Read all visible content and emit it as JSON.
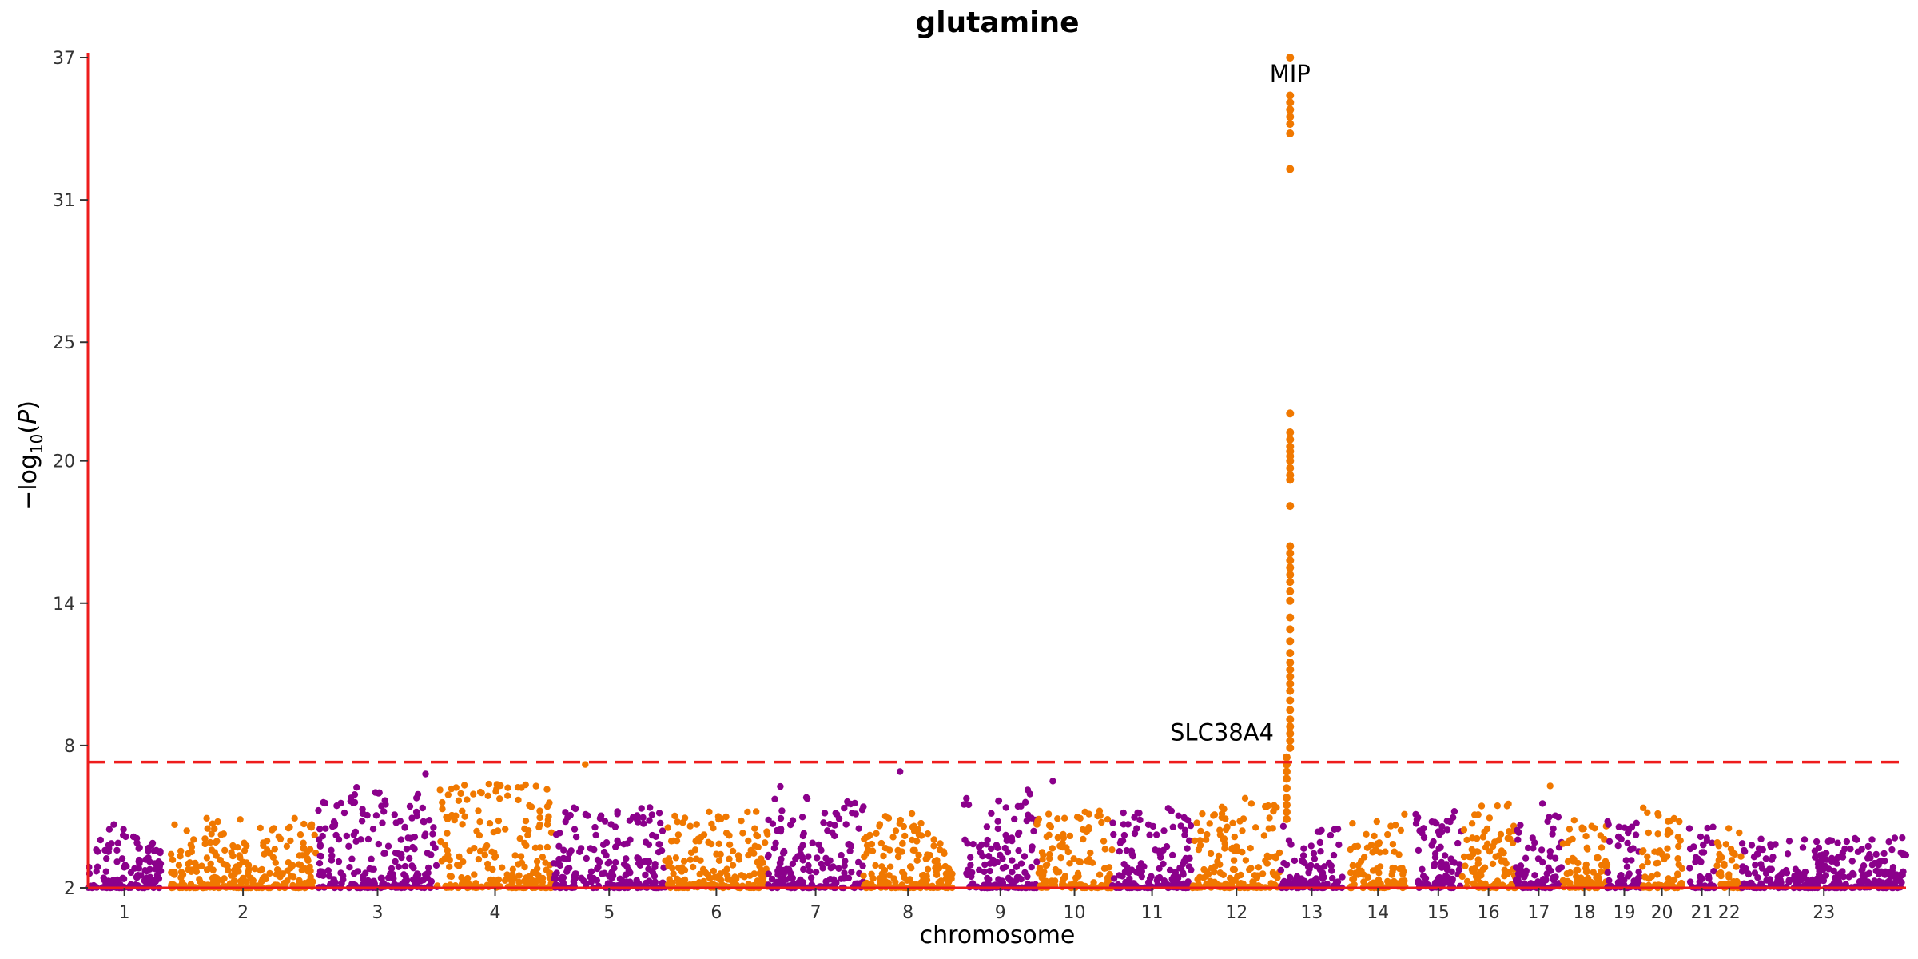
{
  "chart_data": {
    "type": "scatter",
    "subtype": "manhattan",
    "title": "glutamine",
    "xlabel": "chromosome",
    "ylabel": "-log10(P)",
    "ylim": [
      2,
      37
    ],
    "yticks": [
      2,
      8,
      14,
      20,
      25,
      31,
      37
    ],
    "significance_threshold": 7.3,
    "grid": false,
    "colors": {
      "odd": "#8B008B",
      "even": "#F07800",
      "threshold": "#EE1C1C",
      "axis": "#EE1C1C"
    },
    "chromosomes": [
      {
        "label": "1",
        "start": 0.0,
        "end": 3.2
      },
      {
        "label": "2",
        "start": 3.6,
        "end": 10.0
      },
      {
        "label": "3",
        "start": 10.1,
        "end": 15.3
      },
      {
        "label": "4",
        "start": 15.3,
        "end": 20.4
      },
      {
        "label": "5",
        "start": 20.4,
        "end": 25.3
      },
      {
        "label": "6",
        "start": 25.3,
        "end": 29.8
      },
      {
        "label": "7",
        "start": 29.8,
        "end": 34.0
      },
      {
        "label": "8",
        "start": 34.0,
        "end": 37.9
      },
      {
        "label": "9",
        "start": 38.4,
        "end": 41.6
      },
      {
        "label": "10",
        "start": 41.6,
        "end": 44.9
      },
      {
        "label": "11",
        "start": 44.9,
        "end": 48.4
      },
      {
        "label": "12",
        "start": 48.4,
        "end": 52.3
      },
      {
        "label": "13",
        "start": 52.3,
        "end": 55.0
      },
      {
        "label": "14",
        "start": 55.3,
        "end": 57.8
      },
      {
        "label": "15",
        "start": 58.2,
        "end": 60.2
      },
      {
        "label": "16",
        "start": 60.2,
        "end": 62.6
      },
      {
        "label": "17",
        "start": 62.6,
        "end": 64.6
      },
      {
        "label": "18",
        "start": 64.6,
        "end": 66.6
      },
      {
        "label": "19",
        "start": 66.6,
        "end": 68.1
      },
      {
        "label": "20",
        "start": 68.1,
        "end": 69.9
      },
      {
        "label": "21",
        "start": 70.2,
        "end": 71.3
      },
      {
        "label": "22",
        "start": 71.4,
        "end": 72.5
      },
      {
        "label": "23",
        "start": 72.5,
        "end": 79.7
      }
    ],
    "lead_loci": [
      {
        "gene": "MIP",
        "chromosome": "12",
        "position": 52.7,
        "values": [
          37.0,
          35.4,
          35.1,
          34.8,
          34.5,
          34.2,
          33.8,
          32.3,
          22.0,
          21.2,
          20.9,
          20.6,
          20.4,
          20.2,
          20.0,
          19.7,
          19.4,
          19.2,
          18.1,
          16.4,
          16.1,
          15.8,
          15.5,
          15.2,
          14.9,
          14.5,
          14.1,
          13.4,
          12.9,
          12.4,
          11.9,
          11.5,
          11.2,
          10.9,
          10.6,
          10.3,
          9.9,
          9.5,
          9.1,
          8.8,
          8.5,
          8.2,
          7.9
        ]
      },
      {
        "gene": "SLC38A4",
        "chromosome": "12",
        "position": 52.55,
        "values": [
          7.5,
          7.2,
          6.9,
          6.6,
          6.2,
          5.8,
          5.5,
          5.2,
          4.9
        ]
      }
    ],
    "chromosome_peaks": [
      5.1,
      5.3,
      6.6,
      6.9,
      5.8,
      5.6,
      6.5,
      5.5,
      6.2,
      5.6,
      5.6,
      5.9,
      5.1,
      5.2,
      5.6,
      6.0,
      5.6,
      4.9,
      5.3,
      5.6,
      4.9,
      4.8,
      4.3
    ],
    "outliers": [
      {
        "chromosome": "4",
        "position": 21.8,
        "value": 7.2
      },
      {
        "chromosome": "7",
        "position": 35.6,
        "value": 6.9
      },
      {
        "chromosome": "9",
        "position": 42.3,
        "value": 6.5
      },
      {
        "chromosome": "16",
        "position": 64.1,
        "value": 6.3
      },
      {
        "chromosome": "3",
        "position": 14.8,
        "value": 6.8
      }
    ]
  }
}
